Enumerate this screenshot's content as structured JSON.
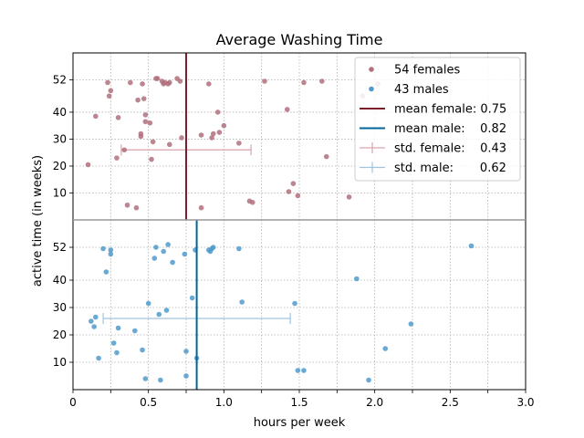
{
  "chart_data": {
    "type": "scatter",
    "title": "Average Washing Time",
    "xlabel": "hours per week",
    "ylabel": "active time (in weeks)",
    "xlim": [
      0,
      3.0
    ],
    "x_ticks": [
      0,
      0.5,
      1.0,
      1.5,
      2.0,
      2.5,
      3.0
    ],
    "x_tick_labels": [
      "0",
      "0.5",
      "1.0",
      "1.5",
      "2.0",
      "2.5",
      "3.0"
    ],
    "x_minor_ticks": [
      0.25,
      0.75,
      1.25,
      1.75,
      2.25,
      2.75
    ],
    "y_ticks": [
      10,
      20,
      30,
      40,
      52
    ],
    "y_tick_labels": [
      "10",
      "20",
      "30",
      "40",
      "52"
    ],
    "ylim": [
      0,
      62
    ],
    "grid": true,
    "legend_position": "top-right",
    "colors": {
      "female": "#b0707d",
      "male": "#4f9acb",
      "mean_female": "#7a1f2c",
      "mean_male": "#006699",
      "std_female": "#d9a3ad",
      "std_male": "#9fc4e0",
      "divider": "#999999"
    },
    "panels": [
      {
        "group": "female",
        "legend_label": "54 females",
        "mean": 0.75,
        "std": 0.43,
        "std_y": 26,
        "points": [
          [
            0.1,
            20.5
          ],
          [
            0.15,
            38.5
          ],
          [
            0.23,
            51.0
          ],
          [
            0.24,
            46.0
          ],
          [
            0.25,
            48.0
          ],
          [
            0.29,
            23.0
          ],
          [
            0.3,
            38.0
          ],
          [
            0.34,
            26.0
          ],
          [
            0.36,
            5.5
          ],
          [
            0.38,
            51.0
          ],
          [
            0.42,
            4.5
          ],
          [
            0.43,
            44.5
          ],
          [
            0.45,
            32.0
          ],
          [
            0.45,
            31.0
          ],
          [
            0.46,
            50.5
          ],
          [
            0.47,
            45.0
          ],
          [
            0.48,
            39.0
          ],
          [
            0.48,
            36.5
          ],
          [
            0.51,
            36.0
          ],
          [
            0.52,
            22.5
          ],
          [
            0.53,
            29.0
          ],
          [
            0.55,
            52.5
          ],
          [
            0.56,
            52.5
          ],
          [
            0.59,
            51.5
          ],
          [
            0.6,
            50.5
          ],
          [
            0.64,
            28.0
          ],
          [
            0.63,
            50.5
          ],
          [
            0.64,
            51.0
          ],
          [
            0.69,
            52.5
          ],
          [
            0.71,
            51.5
          ],
          [
            0.72,
            30.5
          ],
          [
            0.85,
            4.5
          ],
          [
            0.85,
            31.5
          ],
          [
            0.9,
            50.5
          ],
          [
            0.92,
            30.5
          ],
          [
            0.93,
            32.0
          ],
          [
            0.96,
            40.0
          ],
          [
            0.97,
            32.5
          ],
          [
            1.0,
            35.0
          ],
          [
            1.1,
            28.5
          ],
          [
            1.17,
            7.0
          ],
          [
            1.19,
            6.5
          ],
          [
            1.27,
            51.5
          ],
          [
            1.42,
            41.0
          ],
          [
            1.43,
            10.5
          ],
          [
            1.46,
            13.5
          ],
          [
            1.49,
            9.0
          ],
          [
            1.53,
            51.0
          ],
          [
            1.65,
            51.5
          ],
          [
            1.68,
            23.5
          ],
          [
            1.83,
            8.5
          ],
          [
            1.92,
            46.0
          ],
          [
            2.02,
            50.5
          ],
          [
            0.61,
            51.0
          ]
        ]
      },
      {
        "group": "male",
        "legend_label": "43 males",
        "mean": 0.82,
        "std": 0.62,
        "std_y": 26,
        "points": [
          [
            0.12,
            25.0
          ],
          [
            0.14,
            23.0
          ],
          [
            0.15,
            26.5
          ],
          [
            0.17,
            11.5
          ],
          [
            0.2,
            51.5
          ],
          [
            0.22,
            43.0
          ],
          [
            0.25,
            51.0
          ],
          [
            0.25,
            49.5
          ],
          [
            0.27,
            17.0
          ],
          [
            0.29,
            13.5
          ],
          [
            0.3,
            22.5
          ],
          [
            0.41,
            21.5
          ],
          [
            0.46,
            14.5
          ],
          [
            0.48,
            4.0
          ],
          [
            0.5,
            31.5
          ],
          [
            0.54,
            48.0
          ],
          [
            0.55,
            52.0
          ],
          [
            0.57,
            27.5
          ],
          [
            0.58,
            3.5
          ],
          [
            0.6,
            50.5
          ],
          [
            0.62,
            29.0
          ],
          [
            0.63,
            53.0
          ],
          [
            0.66,
            46.5
          ],
          [
            0.74,
            49.5
          ],
          [
            0.75,
            5.0
          ],
          [
            0.75,
            14.0
          ],
          [
            0.79,
            33.5
          ],
          [
            0.81,
            51.0
          ],
          [
            0.82,
            11.5
          ],
          [
            0.9,
            51.0
          ],
          [
            0.91,
            50.5
          ],
          [
            0.92,
            51.5
          ],
          [
            0.93,
            52.0
          ],
          [
            1.1,
            51.5
          ],
          [
            1.12,
            32.0
          ],
          [
            1.47,
            31.5
          ],
          [
            1.49,
            7.0
          ],
          [
            1.53,
            7.0
          ],
          [
            1.88,
            40.5
          ],
          [
            1.96,
            3.5
          ],
          [
            2.07,
            15.0
          ],
          [
            2.24,
            24.0
          ],
          [
            2.64,
            52.5
          ]
        ]
      }
    ],
    "legend": [
      {
        "label": "54 females",
        "kind": "point",
        "color_key": "female"
      },
      {
        "label": "43 males",
        "kind": "point",
        "color_key": "male"
      },
      {
        "label": "mean female: 0.75",
        "kind": "line",
        "color_key": "mean_female"
      },
      {
        "label": "mean male:    0.82",
        "kind": "line",
        "color_key": "mean_male"
      },
      {
        "label": "std. female:    0.43",
        "kind": "errorbar",
        "color_key": "std_female"
      },
      {
        "label": "std. male:       0.62",
        "kind": "errorbar",
        "color_key": "std_male"
      }
    ]
  }
}
